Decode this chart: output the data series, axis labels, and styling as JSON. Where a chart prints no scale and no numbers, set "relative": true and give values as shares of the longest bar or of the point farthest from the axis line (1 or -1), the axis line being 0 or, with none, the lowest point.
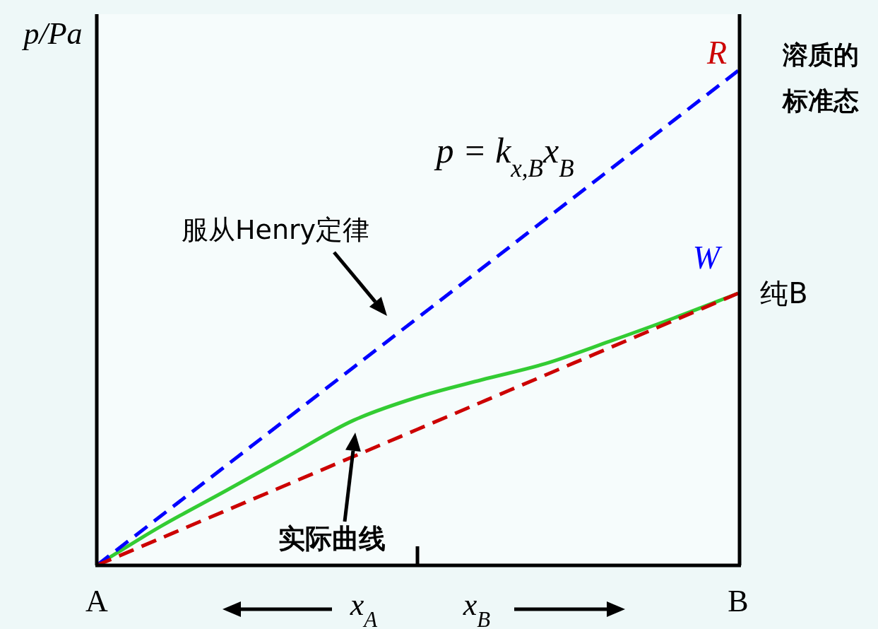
{
  "chart_data": {
    "type": "line",
    "relative": true,
    "ylabel": "p/Pa",
    "categories": [
      "A",
      null,
      null,
      null,
      null,
      null,
      null,
      null,
      null,
      null,
      "B"
    ],
    "tick_labels": "x",
    "grid": false,
    "legend": false,
    "marker": "none",
    "series": [
      {
        "color": "#0000ff",
        "line_style": "dashed",
        "values": [
          0,
          0.1,
          0.2,
          0.3,
          0.4,
          0.5,
          0.6,
          0.7,
          0.8,
          0.9,
          1
        ]
      },
      {
        "color": "#cc0000",
        "line_style": "dashed",
        "values": [
          0,
          0.055,
          0.11,
          0.165,
          0.22,
          0.275,
          0.33,
          0.385,
          0.44,
          0.495,
          0.55
        ]
      },
      {
        "color": "#33cc33",
        "line_style": "solid",
        "values": [
          0,
          0.079,
          0.15,
          0.222,
          0.293,
          0.34,
          0.375,
          0.408,
          0.453,
          0.5,
          0.55
        ]
      }
    ],
    "annotations": [
      {
        "text": "R",
        "x": "B",
        "y": 1
      },
      {
        "text": "W",
        "x": "B",
        "y": 0.55
      },
      {
        "text": "纯B",
        "x": "B",
        "y": 0.55
      },
      "溶质的标准态",
      "p = k$_{x,B}$x$_{B}$",
      "服从Henry定律",
      "实际曲线",
      "x$_{A}$",
      "x$_{B}$"
    ]
  }
}
